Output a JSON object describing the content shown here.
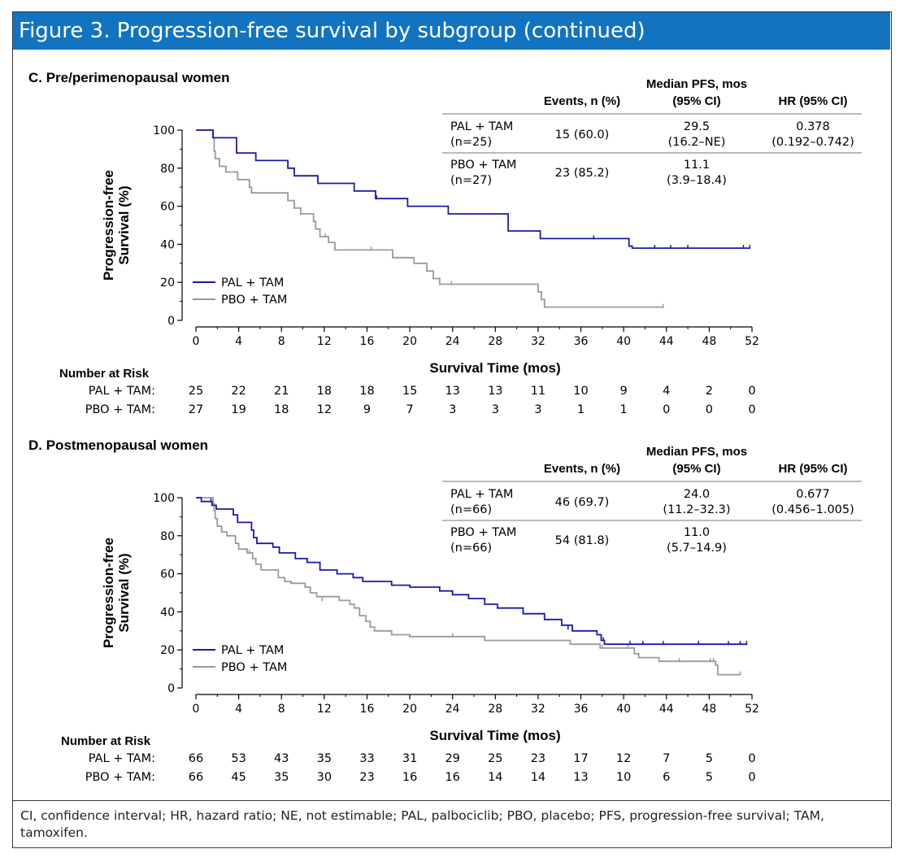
{
  "figure_title": "Figure 3. Progression-free survival by subgroup (continued)",
  "footnote": "CI, confidence interval; HR, hazard ratio; NE, not estimable; PAL, palbociclib; PBO, placebo; PFS, progression-free survival; TAM, tamoxifen.",
  "colors": {
    "header_bg": "#1274c0",
    "pal_tam": "#1a1aa6",
    "pbo_tam": "#9a9a9a"
  },
  "chart_data": [
    {
      "type": "line",
      "panel": "C",
      "title": "C. Pre/perimenopausal women",
      "xlabel": "Survival Time (mos)",
      "ylabel": "Progression-free Survival (%)",
      "ylabel_lines": [
        "Progression-free",
        "Survival (%)"
      ],
      "xlim": [
        0,
        52
      ],
      "ylim": [
        0,
        100
      ],
      "xticks": [
        0,
        4,
        8,
        12,
        16,
        20,
        24,
        28,
        32,
        36,
        40,
        44,
        48,
        52
      ],
      "yticks": [
        0,
        20,
        40,
        60,
        80,
        100
      ],
      "table": {
        "headers": {
          "events": "Events, n (%)",
          "median_line1": "Median PFS, mos",
          "median_line2": "(95% CI)",
          "hr": "HR (95% CI)"
        },
        "rows": [
          {
            "arm_line1": "PAL + TAM",
            "arm_line2": "(n=25)",
            "events": "15 (60.0)",
            "median_line1": "29.5",
            "median_line2": "(16.2–NE)",
            "hr_line1": "0.378",
            "hr_line2": "(0.192–0.742)"
          },
          {
            "arm_line1": "PBO + TAM",
            "arm_line2": "(n=27)",
            "events": "23 (85.2)",
            "median_line1": "11.1",
            "median_line2": "(3.9–18.4)",
            "hr_line1": "",
            "hr_line2": ""
          }
        ]
      },
      "series": [
        {
          "name": "PAL + TAM",
          "color": "#1a1aa6",
          "steps": [
            [
              0,
              100
            ],
            [
              1.6,
              96
            ],
            [
              3.8,
              88
            ],
            [
              5.6,
              84
            ],
            [
              8.6,
              80
            ],
            [
              9.2,
              76
            ],
            [
              11.4,
              72
            ],
            [
              14.8,
              68
            ],
            [
              16.8,
              64
            ],
            [
              19.8,
              60
            ],
            [
              23.6,
              56
            ],
            [
              29.2,
              47
            ],
            [
              32.2,
              43
            ],
            [
              40.5,
              39
            ],
            [
              40.8,
              38
            ],
            [
              51.8,
              38
            ]
          ],
          "censors": [
            [
              16.9,
              64
            ],
            [
              37.2,
              43
            ],
            [
              42.9,
              38
            ],
            [
              44.4,
              38
            ],
            [
              46.0,
              38
            ],
            [
              51.2,
              38
            ],
            [
              51.8,
              38
            ]
          ]
        },
        {
          "name": "PBO + TAM",
          "color": "#9a9a9a",
          "steps": [
            [
              0,
              100
            ],
            [
              1.6,
              96
            ],
            [
              1.7,
              89
            ],
            [
              1.8,
              85
            ],
            [
              2.2,
              81
            ],
            [
              2.8,
              78
            ],
            [
              3.9,
              74
            ],
            [
              5.0,
              70
            ],
            [
              5.2,
              67
            ],
            [
              8.6,
              63
            ],
            [
              9.2,
              59
            ],
            [
              9.8,
              56
            ],
            [
              11.0,
              52
            ],
            [
              11.2,
              48
            ],
            [
              11.6,
              44
            ],
            [
              12.4,
              41
            ],
            [
              13.0,
              37
            ],
            [
              18.4,
              33
            ],
            [
              20.4,
              30
            ],
            [
              21.6,
              26
            ],
            [
              22.2,
              22
            ],
            [
              22.8,
              19
            ],
            [
              32.0,
              15
            ],
            [
              32.3,
              11
            ],
            [
              32.6,
              7
            ],
            [
              43.7,
              7
            ]
          ],
          "censors": [
            [
              12.1,
              44
            ],
            [
              16.4,
              37
            ],
            [
              23.9,
              19
            ],
            [
              43.7,
              7
            ]
          ]
        }
      ],
      "risk_table": {
        "header": "Number at Risk",
        "times": [
          0,
          4,
          8,
          12,
          16,
          20,
          24,
          28,
          32,
          36,
          40,
          44,
          48,
          52
        ],
        "rows": [
          {
            "label": "PAL + TAM:",
            "values": [
              25,
              22,
              21,
              18,
              18,
              15,
              13,
              13,
              11,
              10,
              9,
              4,
              2,
              0
            ]
          },
          {
            "label": "PBO + TAM:",
            "values": [
              27,
              19,
              18,
              12,
              9,
              7,
              3,
              3,
              3,
              1,
              1,
              0,
              0,
              0
            ]
          }
        ]
      }
    },
    {
      "type": "line",
      "panel": "D",
      "title": "D. Postmenopausal women",
      "xlabel": "Survival Time (mos)",
      "ylabel": "Progression-free Survival (%)",
      "ylabel_lines": [
        "Progression-free",
        "Survival (%)"
      ],
      "xlim": [
        0,
        52
      ],
      "ylim": [
        0,
        100
      ],
      "xticks": [
        0,
        4,
        8,
        12,
        16,
        20,
        24,
        28,
        32,
        36,
        40,
        44,
        48,
        52
      ],
      "yticks": [
        0,
        20,
        40,
        60,
        80,
        100
      ],
      "table": {
        "headers": {
          "events": "Events, n (%)",
          "median_line1": "Median PFS, mos",
          "median_line2": "(95% CI)",
          "hr": "HR (95% CI)"
        },
        "rows": [
          {
            "arm_line1": "PAL + TAM",
            "arm_line2": "(n=66)",
            "events": "46 (69.7)",
            "median_line1": "24.0",
            "median_line2": "(11.2–32.3)",
            "hr_line1": "0.677",
            "hr_line2": "(0.456–1.005)"
          },
          {
            "arm_line1": "PBO + TAM",
            "arm_line2": "(n=66)",
            "events": "54 (81.8)",
            "median_line1": "11.0",
            "median_line2": "(5.7–14.9)",
            "hr_line1": "",
            "hr_line2": ""
          }
        ]
      },
      "series": [
        {
          "name": "PAL + TAM",
          "color": "#1a1aa6",
          "steps": [
            [
              0,
              100
            ],
            [
              0.5,
              98
            ],
            [
              1.5,
              96
            ],
            [
              1.9,
              94
            ],
            [
              3.5,
              91
            ],
            [
              3.9,
              87
            ],
            [
              5.2,
              83
            ],
            [
              5.4,
              79
            ],
            [
              5.7,
              76
            ],
            [
              7.2,
              74
            ],
            [
              7.8,
              71
            ],
            [
              9.3,
              68
            ],
            [
              10.4,
              66
            ],
            [
              11.6,
              62
            ],
            [
              13.2,
              60
            ],
            [
              14.7,
              58
            ],
            [
              15.6,
              56
            ],
            [
              18.3,
              54
            ],
            [
              20.0,
              53
            ],
            [
              22.8,
              51
            ],
            [
              24.0,
              49
            ],
            [
              25.5,
              47
            ],
            [
              27.0,
              44
            ],
            [
              28.2,
              42
            ],
            [
              30.6,
              39
            ],
            [
              32.6,
              36
            ],
            [
              34.2,
              33
            ],
            [
              35.2,
              30
            ],
            [
              37.5,
              28
            ],
            [
              37.9,
              25
            ],
            [
              38.2,
              23
            ],
            [
              51.5,
              23
            ]
          ],
          "censors": [
            [
              1.4,
              98
            ],
            [
              34.8,
              31
            ],
            [
              38.1,
              25
            ],
            [
              40.6,
              23
            ],
            [
              41.8,
              23
            ],
            [
              43.7,
              23
            ],
            [
              47.0,
              23
            ],
            [
              49.8,
              23
            ],
            [
              50.9,
              23
            ],
            [
              51.5,
              23
            ]
          ]
        },
        {
          "name": "PBO + TAM",
          "color": "#9a9a9a",
          "steps": [
            [
              0,
              100
            ],
            [
              1.6,
              97
            ],
            [
              1.7,
              93
            ],
            [
              1.8,
              89
            ],
            [
              2.0,
              85
            ],
            [
              2.4,
              82
            ],
            [
              2.9,
              80
            ],
            [
              3.7,
              76
            ],
            [
              4.0,
              73
            ],
            [
              4.8,
              71
            ],
            [
              5.3,
              68
            ],
            [
              5.6,
              65
            ],
            [
              6.1,
              62
            ],
            [
              7.7,
              58
            ],
            [
              8.3,
              56
            ],
            [
              8.9,
              55
            ],
            [
              10.2,
              53
            ],
            [
              10.7,
              50
            ],
            [
              11.3,
              48
            ],
            [
              13.4,
              46
            ],
            [
              14.4,
              44
            ],
            [
              14.8,
              42
            ],
            [
              15.3,
              38
            ],
            [
              15.9,
              35
            ],
            [
              16.3,
              32
            ],
            [
              16.7,
              30
            ],
            [
              18.3,
              28
            ],
            [
              20.0,
              27
            ],
            [
              27.0,
              25
            ],
            [
              35.0,
              23
            ],
            [
              37.8,
              21
            ],
            [
              41.0,
              18
            ],
            [
              41.4,
              16
            ],
            [
              43.3,
              14
            ],
            [
              48.6,
              12
            ],
            [
              48.8,
              7
            ],
            [
              50.9,
              7
            ]
          ],
          "censors": [
            [
              5.0,
              71
            ],
            [
              11.8,
              46
            ],
            [
              24.0,
              27
            ],
            [
              38.0,
              21
            ],
            [
              40.4,
              21
            ],
            [
              45.2,
              14
            ],
            [
              48.1,
              14
            ],
            [
              48.4,
              14
            ],
            [
              50.9,
              7
            ]
          ]
        }
      ],
      "risk_table": {
        "header": "Number at Risk",
        "times": [
          0,
          4,
          8,
          12,
          16,
          20,
          24,
          28,
          32,
          36,
          40,
          44,
          48,
          52
        ],
        "rows": [
          {
            "label": "PAL + TAM:",
            "values": [
              66,
              53,
              43,
              35,
              33,
              31,
              29,
              25,
              23,
              17,
              12,
              7,
              5,
              0
            ]
          },
          {
            "label": "PBO + TAM:",
            "values": [
              66,
              45,
              35,
              30,
              23,
              16,
              16,
              14,
              14,
              13,
              10,
              6,
              5,
              0
            ]
          }
        ]
      }
    }
  ]
}
